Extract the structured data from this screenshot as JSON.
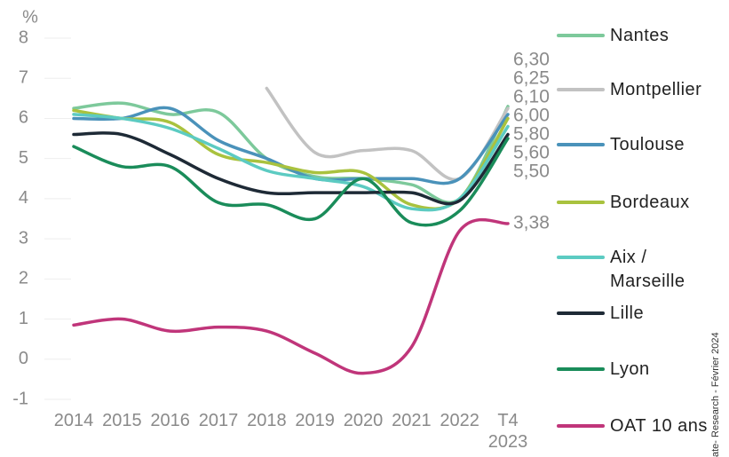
{
  "chart_data": {
    "type": "line",
    "y_label": "%",
    "categories": [
      "2014",
      "2015",
      "2016",
      "2017",
      "2018",
      "2019",
      "2020",
      "2021",
      "2022",
      "T4 2023"
    ],
    "ylim": [
      -1,
      8
    ],
    "yticks": [
      -1,
      0,
      1,
      2,
      3,
      4,
      5,
      6,
      7,
      8
    ],
    "series": [
      {
        "name": "Nantes",
        "color": "#7dc99b",
        "values": [
          6.25,
          6.38,
          6.1,
          6.15,
          5.0,
          4.55,
          4.5,
          4.35,
          4.0,
          6.3
        ],
        "end_label": "6,30"
      },
      {
        "name": "Montpellier",
        "color": "#c2c2c2",
        "values": [
          null,
          null,
          null,
          null,
          6.75,
          5.15,
          5.2,
          5.2,
          4.5,
          6.25
        ],
        "end_label": "6,25"
      },
      {
        "name": "Toulouse",
        "color": "#4a92ba",
        "values": [
          6.0,
          6.0,
          6.25,
          5.45,
          5.0,
          4.5,
          4.5,
          4.5,
          4.5,
          6.1
        ],
        "end_label": "6,10"
      },
      {
        "name": "Bordeaux",
        "color": "#a9c23e",
        "values": [
          6.2,
          6.0,
          5.9,
          5.1,
          4.9,
          4.65,
          4.65,
          3.85,
          4.0,
          6.0
        ],
        "end_label": "6,00"
      },
      {
        "name": "Aix / Marseille",
        "color": "#5ccbc2",
        "values": [
          6.1,
          6.0,
          5.75,
          5.25,
          4.7,
          4.5,
          4.3,
          3.75,
          4.0,
          5.8
        ],
        "end_label": "5,80"
      },
      {
        "name": "Lille",
        "color": "#1e2a36",
        "values": [
          5.6,
          5.6,
          5.1,
          4.5,
          4.15,
          4.15,
          4.15,
          4.15,
          3.95,
          5.6
        ],
        "end_label": "5,60"
      },
      {
        "name": "Lyon",
        "color": "#1a8c5a",
        "values": [
          5.3,
          4.8,
          4.8,
          3.9,
          3.85,
          3.5,
          4.5,
          3.4,
          3.7,
          5.5
        ],
        "end_label": "5,50"
      },
      {
        "name": "OAT 10 ans",
        "color": "#c0357a",
        "values": [
          0.85,
          1.0,
          0.7,
          0.8,
          0.7,
          0.15,
          -0.35,
          0.3,
          3.2,
          3.38
        ],
        "end_label": "3,38"
      }
    ],
    "source": "ate- Research - Février 2024"
  }
}
